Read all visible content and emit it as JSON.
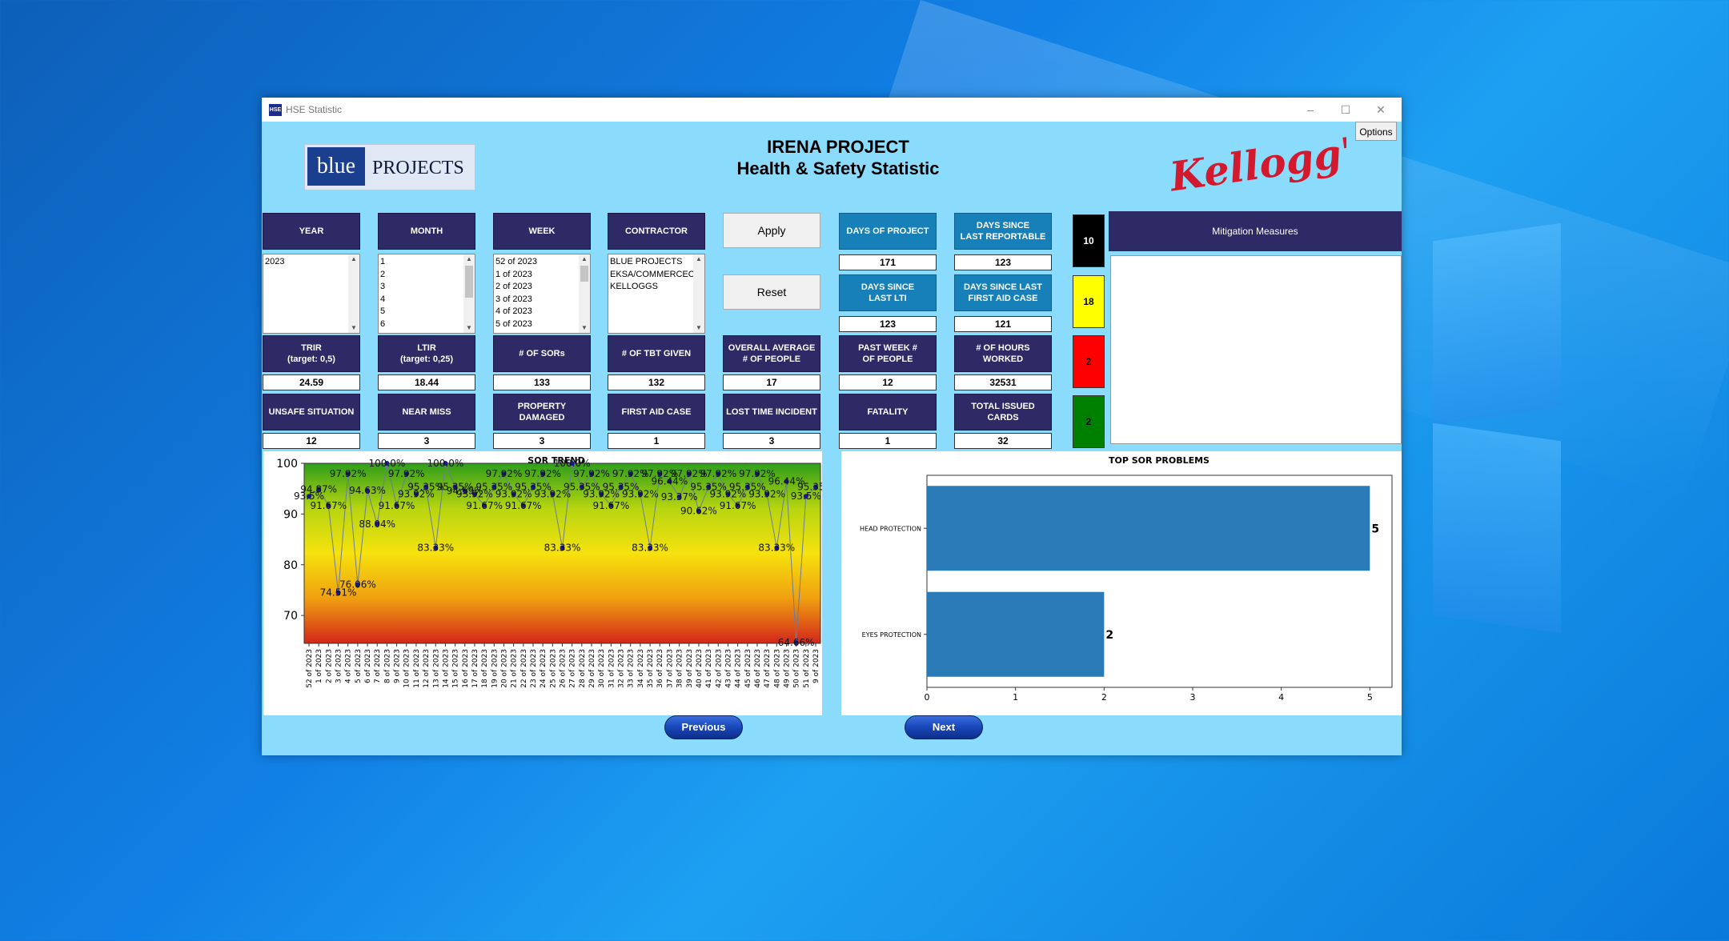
{
  "window": {
    "title": "HSE Statistic",
    "app_icon_text": "HSE",
    "controls": {
      "minimize": "–",
      "maximize": "☐",
      "close": "✕"
    }
  },
  "options_label": "Options",
  "logo_left": {
    "word1": "blue",
    "word2": "PROJECTS"
  },
  "header": {
    "title": "IRENA PROJECT",
    "subtitle": "Health & Safety Statistic"
  },
  "logo_right": {
    "text": "Kellogg's",
    "color": "#d2192e"
  },
  "filters": {
    "year": {
      "label": "YEAR",
      "options": [
        "2023"
      ]
    },
    "month": {
      "label": "MONTH",
      "options": [
        "1",
        "2",
        "3",
        "4",
        "5",
        "6"
      ]
    },
    "week": {
      "label": "WEEK",
      "options": [
        "52 of 2023",
        "1 of 2023",
        "2 of 2023",
        "3 of 2023",
        "4 of 2023",
        "5 of 2023"
      ]
    },
    "contractor": {
      "label": "CONTRACTOR",
      "options": [
        "BLUE PROJECTS",
        "EKSA/COMMERCEON",
        "KELLOGGS"
      ]
    }
  },
  "buttons": {
    "apply": "Apply",
    "reset": "Reset",
    "previous": "Previous",
    "next": "Next"
  },
  "stats": {
    "days_of_project": {
      "label": "DAYS OF PROJECT",
      "value": "171"
    },
    "days_since_reportable": {
      "label1": "DAYS SINCE",
      "label2": "LAST REPORTABLE",
      "value": "123"
    },
    "days_since_lti": {
      "label1": "DAYS SINCE",
      "label2": "LAST LTI",
      "value": "123"
    },
    "days_since_first_aid": {
      "label1": "DAYS SINCE LAST",
      "label2": "FIRST AID CASE",
      "value": "121"
    },
    "trir": {
      "label1": "TRIR",
      "label2": "(target: 0,5)",
      "value": "24.59"
    },
    "ltir": {
      "label1": "LTIR",
      "label2": "(target: 0,25)",
      "value": "18.44"
    },
    "sors": {
      "label": "# OF SORs",
      "value": "133"
    },
    "tbt": {
      "label": "# OF TBT GIVEN",
      "value": "132"
    },
    "avg_people": {
      "label1": "OVERALL AVERAGE",
      "label2": "# OF PEOPLE",
      "value": "17"
    },
    "past_week_people": {
      "label1": "PAST WEEK #",
      "label2": "OF PEOPLE",
      "value": "12"
    },
    "hours_worked": {
      "label": "# OF HOURS WORKED",
      "value": "32531"
    },
    "unsafe_situation": {
      "label": "UNSAFE SITUATION",
      "value": "12"
    },
    "near_miss": {
      "label": "NEAR MISS",
      "value": "3"
    },
    "property_damaged": {
      "label": "PROPERTY DAMAGED",
      "value": "3"
    },
    "first_aid_case": {
      "label": "FIRST AID CASE",
      "value": "1"
    },
    "lost_time_incident": {
      "label": "LOST TIME INCIDENT",
      "value": "3"
    },
    "fatality": {
      "label": "FATALITY",
      "value": "1"
    },
    "total_issued_cards": {
      "label": "TOTAL ISSUED CARDS",
      "value": "32"
    }
  },
  "cards": [
    {
      "value": "10",
      "color": "#000000",
      "text_color": "#ffffff"
    },
    {
      "value": "18",
      "color": "#ffff00",
      "text_color": "#000000"
    },
    {
      "value": "2",
      "color": "#ff0000",
      "text_color": "#000000"
    },
    {
      "value": "2",
      "color": "#008000",
      "text_color": "#000000"
    }
  ],
  "mitigation": {
    "label": "Mitigation Measures"
  },
  "chart_data": [
    {
      "type": "line",
      "title": "SOR TREND",
      "ylim": [
        64.5,
        100
      ],
      "yticks": [
        70,
        80,
        90,
        100
      ],
      "background": "gradient red-yellow-green",
      "line_color": "#6a7c9a",
      "marker_color": "#1a1a8c",
      "x": [
        "52 of 2023",
        "1 of 2023",
        "2 of 2023",
        "3 of 2023",
        "4 of 2023",
        "5 of 2023",
        "6 of 2023",
        "7 of 2023",
        "8 of 2023",
        "9 of 2023",
        "10 of 2023",
        "11 of 2023",
        "12 of 2023",
        "13 of 2023",
        "14 of 2023",
        "15 of 2023",
        "16 of 2023",
        "17 of 2023",
        "18 of 2023",
        "19 of 2023",
        "20 of 2023",
        "21 of 2023",
        "22 of 2023",
        "23 of 2023",
        "24 of 2023",
        "25 of 2023",
        "26 of 2023",
        "27 of 2023",
        "28 of 2023",
        "29 of 2023",
        "30 of 2023",
        "31 of 2023",
        "32 of 2023",
        "33 of 2023",
        "34 of 2023",
        "35 of 2023",
        "36 of 2023",
        "37 of 2023",
        "38 of 2023",
        "39 of 2023",
        "40 of 2023",
        "41 of 2023",
        "42 of 2023",
        "43 of 2023",
        "44 of 2023",
        "45 of 2023",
        "46 of 2023",
        "47 of 2023",
        "48 of 2023",
        "49 of 2023",
        "50 of 2023",
        "51 of 2023",
        "9 of 2023"
      ],
      "values": [
        93.5,
        94.87,
        91.67,
        74.51,
        97.92,
        76.06,
        94.63,
        88.04,
        100.0,
        91.67,
        97.92,
        93.92,
        95.35,
        83.33,
        100.0,
        95.35,
        94.59,
        93.92,
        91.67,
        95.35,
        97.92,
        93.92,
        91.67,
        95.35,
        97.92,
        93.92,
        83.33,
        100.0,
        95.35,
        97.92,
        93.92,
        91.67,
        95.35,
        97.92,
        93.92,
        83.33,
        97.92,
        96.44,
        93.37,
        97.92,
        90.62,
        95.35,
        97.92,
        93.92,
        91.67,
        95.35,
        97.92,
        93.92,
        83.33,
        96.44,
        64.66,
        93.5,
        95.35
      ],
      "labels": [
        "93.5%",
        "94.87%",
        "91.67%",
        "74.51%",
        "97.92%",
        "76.06%",
        "94.63%",
        "88.04%",
        "100.0%",
        "91.67%",
        "97.92%",
        "93.92%",
        "95.35%",
        "83.33%",
        "100.0%",
        "95.35%",
        "94.59%",
        "93.92%",
        "91.67%",
        "95.35%",
        "97.92%",
        "93.92%",
        "91.67%",
        "95.35%",
        "97.92%",
        "93.92%",
        "83.33%",
        "100.0%",
        "95.35%",
        "97.92%",
        "93.92%",
        "91.67%",
        "95.35%",
        "97.92%",
        "93.92%",
        "83.33%",
        "97.92%",
        "96.44%",
        "93.37%",
        "97.92%",
        "90.62%",
        "95.35%",
        "97.92%",
        "93.92%",
        "91.67%",
        "95.35%",
        "97.92%",
        "93.92%",
        "83.33%",
        "96.44%",
        "64.66%",
        "93.5%",
        "95.35%"
      ]
    },
    {
      "type": "bar",
      "orientation": "horizontal",
      "title": "TOP SOR PROBLEMS",
      "categories": [
        "HEAD PROTECTION",
        "EYES PROTECTION"
      ],
      "values": [
        5,
        2
      ],
      "xlim": [
        0,
        5.25
      ],
      "xticks": [
        0,
        1,
        2,
        3,
        4,
        5
      ],
      "bar_color": "#2a7ab8"
    }
  ]
}
